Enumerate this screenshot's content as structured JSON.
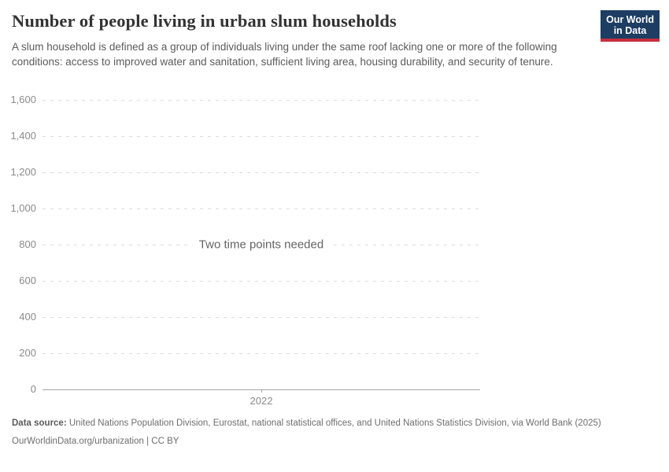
{
  "header": {
    "title": "Number of people living in urban slum households",
    "subtitle": "A slum household is defined as a group of individuals living under the same roof lacking one or more of the following conditions: access to improved water and sanitation, sufficient living area, housing durability, and security of tenure."
  },
  "logo": {
    "line1": "Our World",
    "line2": "in Data",
    "bg_color": "#1d3d63",
    "accent_color": "#c5303e"
  },
  "chart_data": {
    "type": "line",
    "title": "Number of people living in urban slum households",
    "series": [],
    "note": "Two time points needed",
    "note_anchor": {
      "x_frac": 0.5,
      "y_value": 800
    },
    "ylim": [
      0,
      1600
    ],
    "y_tick_step": 200,
    "y_ticks": [
      {
        "v": 0,
        "label": "0"
      },
      {
        "v": 200,
        "label": "200"
      },
      {
        "v": 400,
        "label": "400"
      },
      {
        "v": 600,
        "label": "600"
      },
      {
        "v": 800,
        "label": "800"
      },
      {
        "v": 1000,
        "label": "1,000"
      },
      {
        "v": 1200,
        "label": "1,200"
      },
      {
        "v": 1400,
        "label": "1,400"
      },
      {
        "v": 1600,
        "label": "1,600"
      }
    ],
    "x_ticks": [
      {
        "pos_frac": 0.5,
        "label": "2022"
      }
    ],
    "grid": "horizontal-dashed",
    "legend": "none",
    "colors": {
      "grid": "#dcdcdc",
      "axis": "#a7a7a7",
      "tick_label": "#8b8b8b",
      "note_text": "#646464"
    }
  },
  "footer": {
    "source_label": "Data source:",
    "source_text": "United Nations Population Division, Eurostat, national statistical offices, and United Nations Statistics Division, via World Bank (2025)",
    "attribution": "OurWorldinData.org/urbanization | CC BY"
  }
}
